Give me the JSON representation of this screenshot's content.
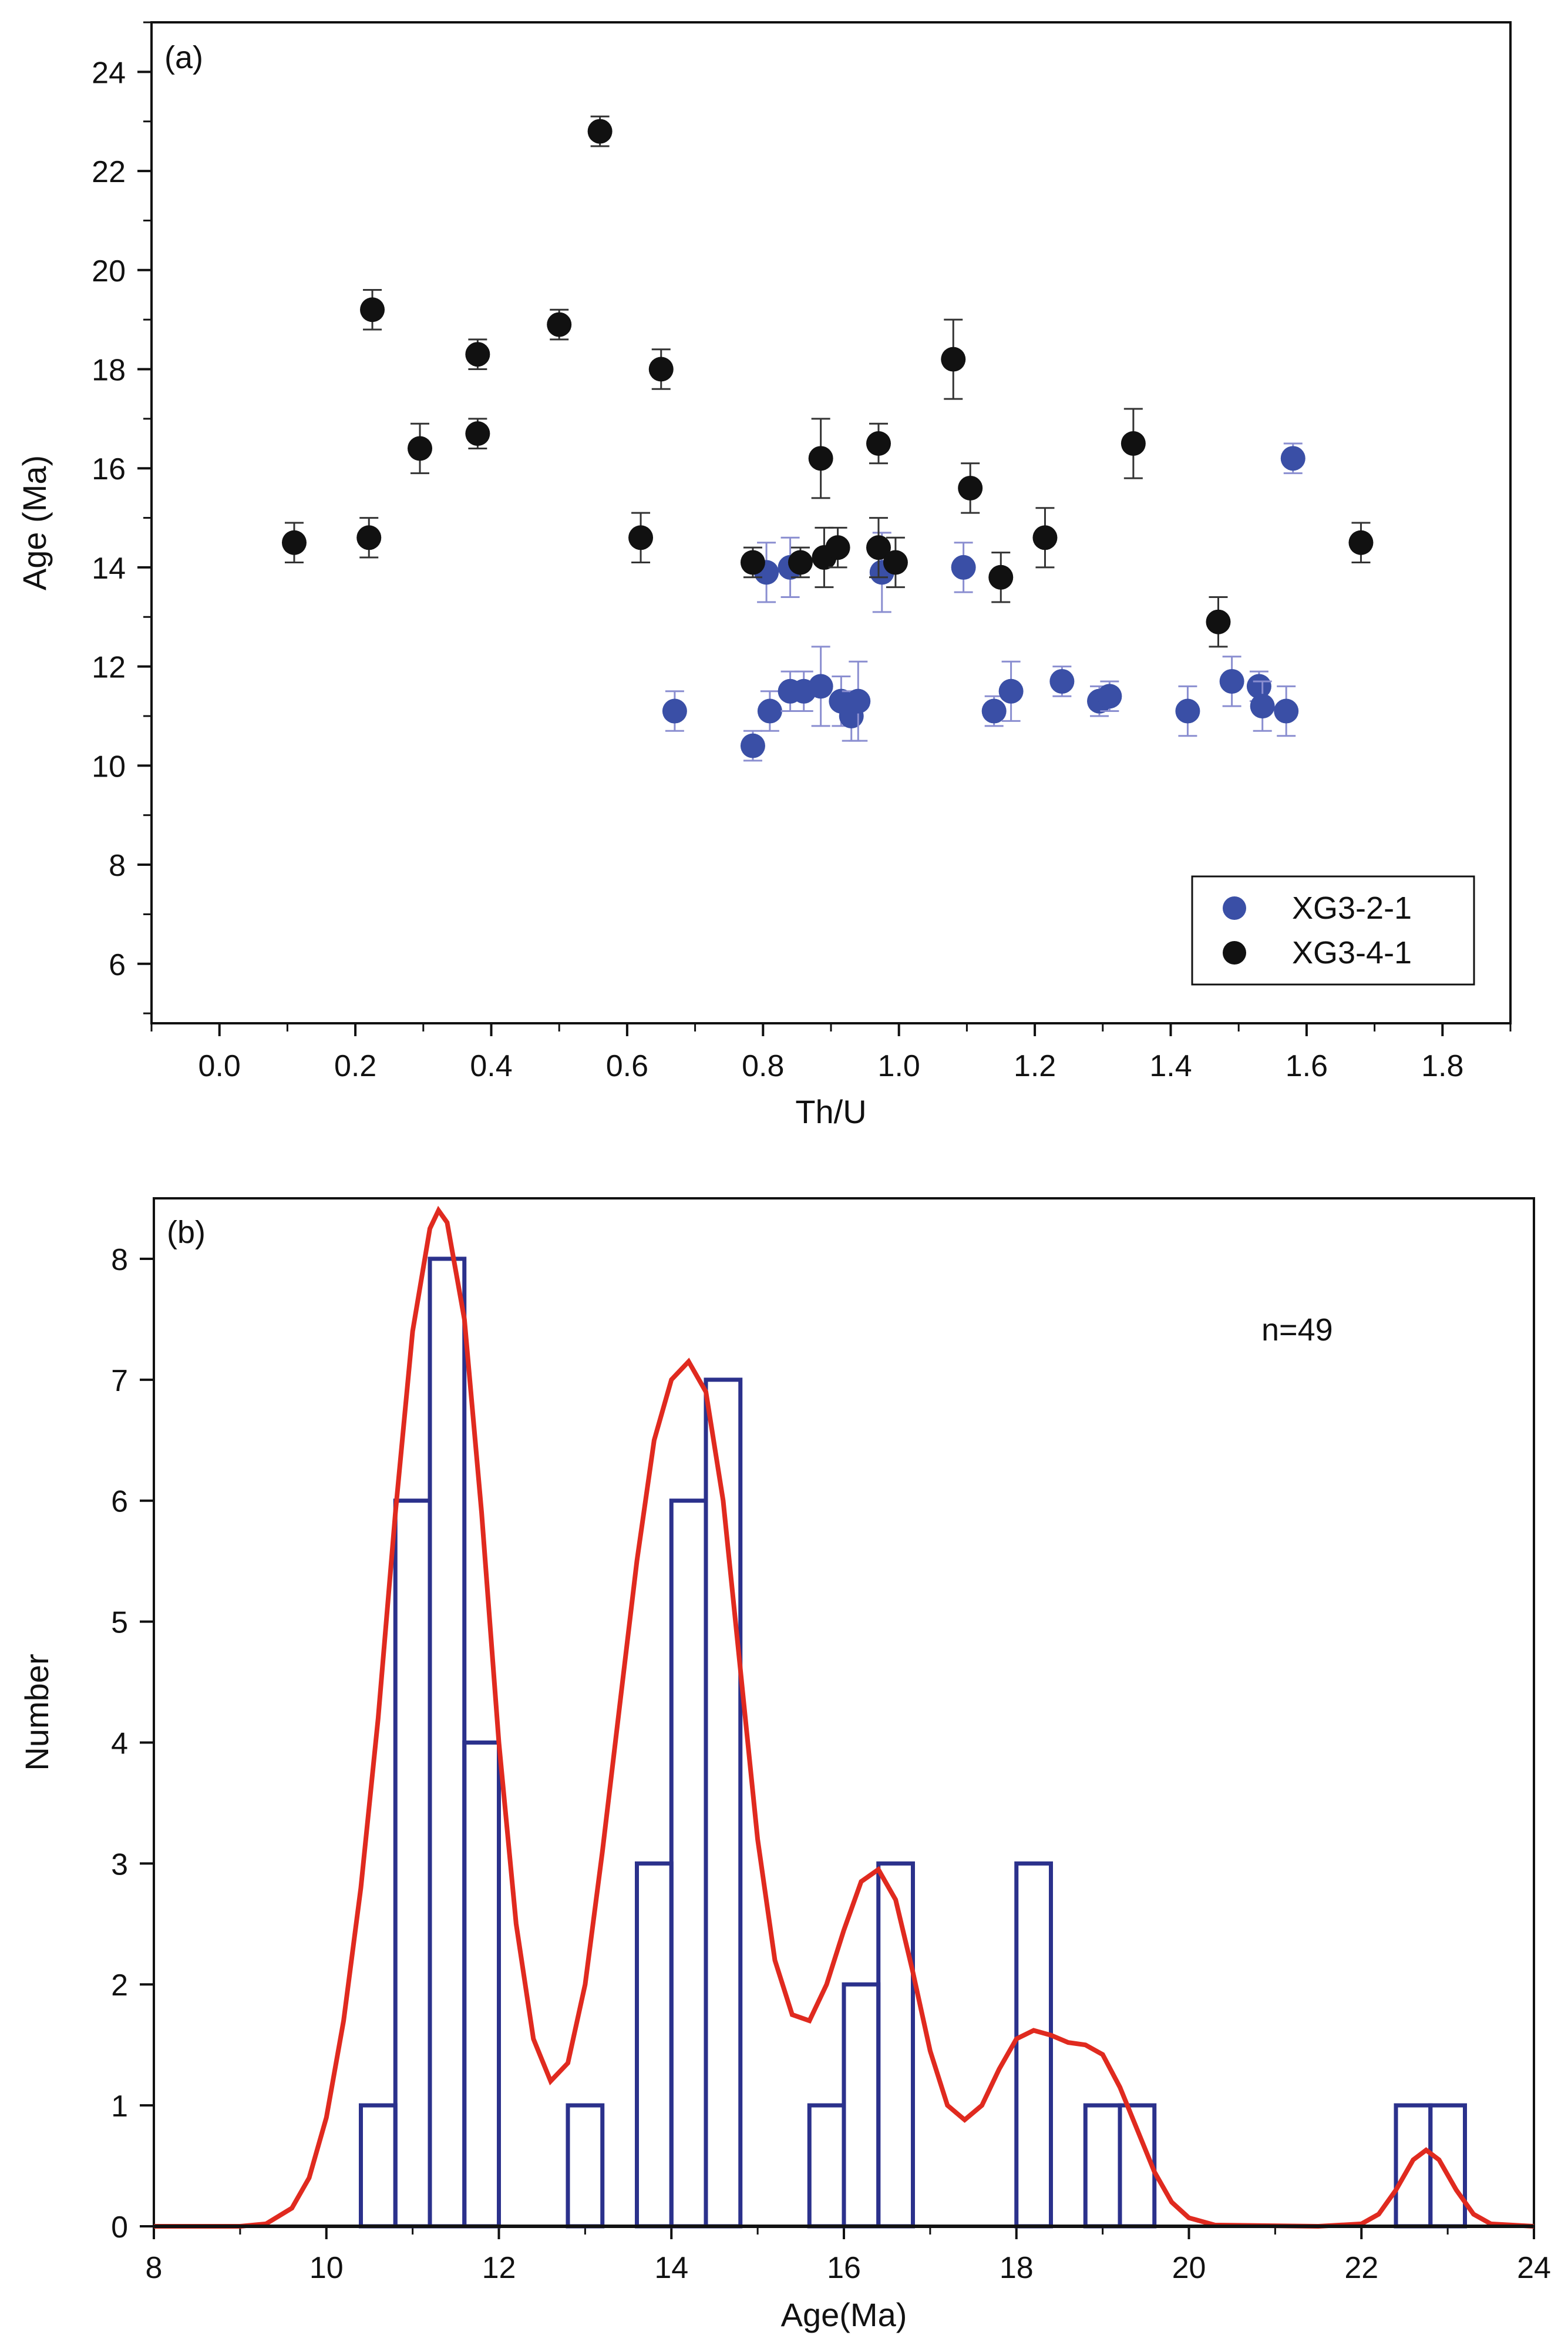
{
  "chart_data": [
    {
      "type": "scatter",
      "panel_label": "(a)",
      "title": "",
      "xlabel": "Th/U",
      "ylabel": "Age (Ma)",
      "xlim": [
        -0.1,
        1.9
      ],
      "ylim": [
        4.8,
        25
      ],
      "xticks": [
        "0.0",
        "0.2",
        "0.4",
        "0.6",
        "0.8",
        "1.0",
        "1.2",
        "1.4",
        "1.6",
        "1.8"
      ],
      "xtick_values": [
        0.0,
        0.2,
        0.4,
        0.6,
        0.8,
        1.0,
        1.2,
        1.4,
        1.6,
        1.8
      ],
      "yticks": [
        "6",
        "8",
        "10",
        "12",
        "14",
        "16",
        "18",
        "20",
        "22",
        "24"
      ],
      "ytick_values": [
        6,
        8,
        10,
        12,
        14,
        16,
        18,
        20,
        22,
        24
      ],
      "legend": {
        "position": "bottom-right"
      },
      "series": [
        {
          "name": "XG3-2-1",
          "color": "#3a4fa6",
          "error_color": "#8a8ed0",
          "points": [
            {
              "x": 0.67,
              "y": 11.1,
              "err": 0.4
            },
            {
              "x": 0.785,
              "y": 10.4,
              "err": 0.3
            },
            {
              "x": 0.805,
              "y": 13.9,
              "err": 0.6
            },
            {
              "x": 0.81,
              "y": 11.1,
              "err": 0.4
            },
            {
              "x": 0.84,
              "y": 11.5,
              "err": 0.4
            },
            {
              "x": 0.84,
              "y": 14.0,
              "err": 0.6
            },
            {
              "x": 0.86,
              "y": 11.5,
              "err": 0.4
            },
            {
              "x": 0.885,
              "y": 11.6,
              "err": 0.8
            },
            {
              "x": 0.915,
              "y": 11.3,
              "err": 0.5
            },
            {
              "x": 0.93,
              "y": 11.0,
              "err": 0.5
            },
            {
              "x": 0.94,
              "y": 11.3,
              "err": 0.8
            },
            {
              "x": 0.975,
              "y": 13.9,
              "err": 0.8
            },
            {
              "x": 1.095,
              "y": 14.0,
              "err": 0.5
            },
            {
              "x": 1.14,
              "y": 11.1,
              "err": 0.3
            },
            {
              "x": 1.165,
              "y": 11.5,
              "err": 0.6
            },
            {
              "x": 1.24,
              "y": 11.7,
              "err": 0.3
            },
            {
              "x": 1.295,
              "y": 11.3,
              "err": 0.3
            },
            {
              "x": 1.31,
              "y": 11.4,
              "err": 0.3
            },
            {
              "x": 1.425,
              "y": 11.1,
              "err": 0.5
            },
            {
              "x": 1.49,
              "y": 11.7,
              "err": 0.5
            },
            {
              "x": 1.53,
              "y": 11.6,
              "err": 0.3
            },
            {
              "x": 1.535,
              "y": 11.2,
              "err": 0.5
            },
            {
              "x": 1.57,
              "y": 11.1,
              "err": 0.5
            },
            {
              "x": 1.58,
              "y": 16.2,
              "err": 0.3
            }
          ]
        },
        {
          "name": "XG3-4-1",
          "color": "#111111",
          "error_color": "#333333",
          "points": [
            {
              "x": 0.11,
              "y": 14.5,
              "err": 0.4
            },
            {
              "x": 0.22,
              "y": 14.6,
              "err": 0.4
            },
            {
              "x": 0.225,
              "y": 19.2,
              "err": 0.4
            },
            {
              "x": 0.295,
              "y": 16.4,
              "err": 0.5
            },
            {
              "x": 0.38,
              "y": 16.7,
              "err": 0.3
            },
            {
              "x": 0.38,
              "y": 18.3,
              "err": 0.3
            },
            {
              "x": 0.5,
              "y": 18.9,
              "err": 0.3
            },
            {
              "x": 0.56,
              "y": 22.8,
              "err": 0.3
            },
            {
              "x": 0.62,
              "y": 14.6,
              "err": 0.5
            },
            {
              "x": 0.65,
              "y": 18.0,
              "err": 0.4
            },
            {
              "x": 0.785,
              "y": 14.1,
              "err": 0.3
            },
            {
              "x": 0.855,
              "y": 14.1,
              "err": 0.3
            },
            {
              "x": 0.885,
              "y": 16.2,
              "err": 0.8
            },
            {
              "x": 0.89,
              "y": 14.2,
              "err": 0.6
            },
            {
              "x": 0.91,
              "y": 14.4,
              "err": 0.4
            },
            {
              "x": 0.97,
              "y": 16.5,
              "err": 0.4
            },
            {
              "x": 0.97,
              "y": 14.4,
              "err": 0.6
            },
            {
              "x": 0.995,
              "y": 14.1,
              "err": 0.5
            },
            {
              "x": 1.08,
              "y": 18.2,
              "err": 0.8
            },
            {
              "x": 1.105,
              "y": 15.6,
              "err": 0.5
            },
            {
              "x": 1.15,
              "y": 13.8,
              "err": 0.5
            },
            {
              "x": 1.215,
              "y": 14.6,
              "err": 0.6
            },
            {
              "x": 1.345,
              "y": 16.5,
              "err": 0.7
            },
            {
              "x": 1.47,
              "y": 12.9,
              "err": 0.5
            },
            {
              "x": 1.68,
              "y": 14.5,
              "err": 0.4
            }
          ]
        }
      ]
    },
    {
      "type": "histogram",
      "panel_label": "(b)",
      "title": "",
      "xlabel": "Age(Ma)",
      "ylabel": "Number",
      "annotation": "n=49",
      "xlim": [
        8,
        24
      ],
      "ylim": [
        0,
        8.5
      ],
      "xticks": [
        "8",
        "10",
        "12",
        "14",
        "16",
        "18",
        "20",
        "22",
        "24"
      ],
      "xtick_values": [
        8,
        10,
        12,
        14,
        16,
        18,
        20,
        22,
        24
      ],
      "yticks": [
        "0",
        "1",
        "2",
        "3",
        "4",
        "5",
        "6",
        "7",
        "8"
      ],
      "ytick_values": [
        0,
        1,
        2,
        3,
        4,
        5,
        6,
        7,
        8
      ],
      "bin_width": 0.4,
      "bar_color": "#2b318c",
      "bins": [
        {
          "start": 10.4,
          "count": 1
        },
        {
          "start": 10.8,
          "count": 6
        },
        {
          "start": 11.2,
          "count": 8
        },
        {
          "start": 11.6,
          "count": 4
        },
        {
          "start": 12.8,
          "count": 1
        },
        {
          "start": 13.6,
          "count": 3
        },
        {
          "start": 14.0,
          "count": 6
        },
        {
          "start": 14.4,
          "count": 7
        },
        {
          "start": 15.6,
          "count": 1
        },
        {
          "start": 16.0,
          "count": 2
        },
        {
          "start": 16.4,
          "count": 3
        },
        {
          "start": 18.0,
          "count": 3
        },
        {
          "start": 18.8,
          "count": 1
        },
        {
          "start": 19.2,
          "count": 1
        },
        {
          "start": 22.4,
          "count": 1
        },
        {
          "start": 22.8,
          "count": 1
        }
      ],
      "density_curve": {
        "color": "#e02a1f",
        "points": [
          [
            8.0,
            0
          ],
          [
            9.0,
            0.0
          ],
          [
            9.3,
            0.02
          ],
          [
            9.6,
            0.15
          ],
          [
            9.8,
            0.4
          ],
          [
            10.0,
            0.9
          ],
          [
            10.2,
            1.7
          ],
          [
            10.4,
            2.8
          ],
          [
            10.6,
            4.2
          ],
          [
            10.8,
            5.9
          ],
          [
            11.0,
            7.4
          ],
          [
            11.2,
            8.25
          ],
          [
            11.3,
            8.4
          ],
          [
            11.4,
            8.3
          ],
          [
            11.6,
            7.5
          ],
          [
            11.8,
            5.9
          ],
          [
            12.0,
            4.0
          ],
          [
            12.2,
            2.5
          ],
          [
            12.4,
            1.55
          ],
          [
            12.6,
            1.2
          ],
          [
            12.8,
            1.35
          ],
          [
            13.0,
            2.0
          ],
          [
            13.2,
            3.1
          ],
          [
            13.4,
            4.3
          ],
          [
            13.6,
            5.5
          ],
          [
            13.8,
            6.5
          ],
          [
            14.0,
            7.0
          ],
          [
            14.2,
            7.15
          ],
          [
            14.4,
            6.9
          ],
          [
            14.6,
            6.0
          ],
          [
            14.8,
            4.6
          ],
          [
            15.0,
            3.2
          ],
          [
            15.2,
            2.2
          ],
          [
            15.4,
            1.75
          ],
          [
            15.6,
            1.7
          ],
          [
            15.8,
            2.0
          ],
          [
            16.0,
            2.45
          ],
          [
            16.2,
            2.85
          ],
          [
            16.4,
            2.95
          ],
          [
            16.6,
            2.7
          ],
          [
            16.8,
            2.1
          ],
          [
            17.0,
            1.45
          ],
          [
            17.2,
            1.0
          ],
          [
            17.4,
            0.88
          ],
          [
            17.6,
            1.0
          ],
          [
            17.8,
            1.3
          ],
          [
            18.0,
            1.55
          ],
          [
            18.2,
            1.62
          ],
          [
            18.4,
            1.58
          ],
          [
            18.6,
            1.52
          ],
          [
            18.8,
            1.5
          ],
          [
            19.0,
            1.42
          ],
          [
            19.2,
            1.15
          ],
          [
            19.4,
            0.8
          ],
          [
            19.6,
            0.45
          ],
          [
            19.8,
            0.2
          ],
          [
            20.0,
            0.07
          ],
          [
            20.3,
            0.01
          ],
          [
            21.5,
            0.0
          ],
          [
            22.0,
            0.02
          ],
          [
            22.2,
            0.1
          ],
          [
            22.4,
            0.3
          ],
          [
            22.6,
            0.55
          ],
          [
            22.75,
            0.63
          ],
          [
            22.9,
            0.55
          ],
          [
            23.1,
            0.3
          ],
          [
            23.3,
            0.1
          ],
          [
            23.5,
            0.02
          ],
          [
            24.0,
            0.0
          ]
        ]
      }
    }
  ]
}
